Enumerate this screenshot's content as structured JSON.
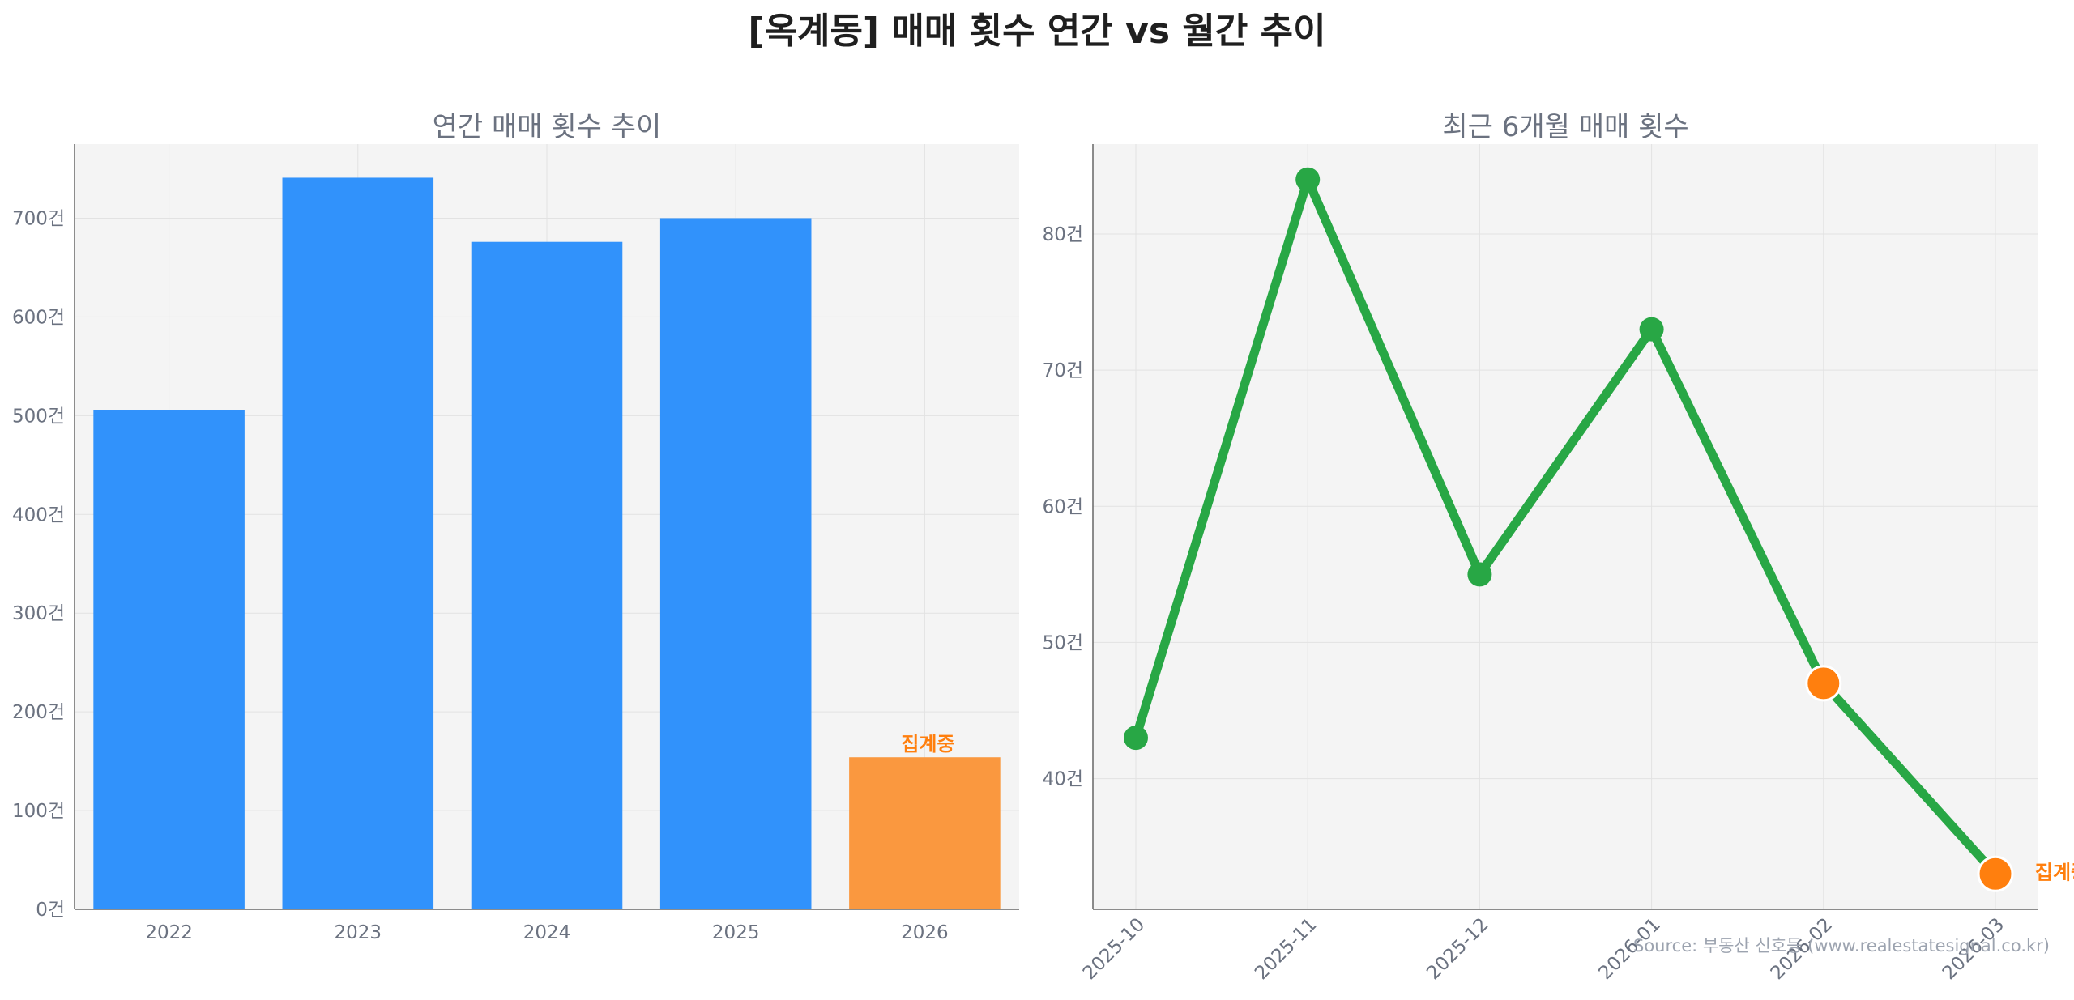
{
  "title": "[옥계동] 매매 횟수 연간 vs 월간 추이",
  "source": "Source: 부동산 신호등 (www.realestatesignal.co.kr)",
  "colors": {
    "bar": "#3192fb",
    "bar_pending": "#fa983f",
    "line": "#28a745",
    "marker_pending": "#ff7f0e",
    "plot_bg": "#f4f4f4",
    "grid": "#e2e2e2",
    "axis": "#666666"
  },
  "chart_data": [
    {
      "type": "bar",
      "title": "연간 매매 횟수 추이",
      "categories": [
        "2022",
        "2023",
        "2024",
        "2025",
        "2026"
      ],
      "values": [
        506,
        741,
        676,
        700,
        154
      ],
      "pending_index": 4,
      "annotation": "집계중",
      "ylim": [
        0,
        775
      ],
      "yticks": [
        0,
        100,
        200,
        300,
        400,
        500,
        600,
        700
      ],
      "ytick_labels": [
        "0건",
        "100건",
        "200건",
        "300건",
        "400건",
        "500건",
        "600건",
        "700건"
      ],
      "grid": true
    },
    {
      "type": "line",
      "title": "최근 6개월 매매 횟수",
      "x": [
        "2025-10",
        "2025-11",
        "2025-12",
        "2026-01",
        "2026-02",
        "2026-03"
      ],
      "values": [
        43,
        84,
        55,
        73,
        47,
        33
      ],
      "pending_indices": [
        4,
        5
      ],
      "annotation": "집계중",
      "ylim": [
        30.4,
        86.6
      ],
      "yticks": [
        40,
        50,
        60,
        70,
        80
      ],
      "ytick_labels": [
        "40건",
        "50건",
        "60건",
        "70건",
        "80건"
      ],
      "grid": true
    }
  ]
}
